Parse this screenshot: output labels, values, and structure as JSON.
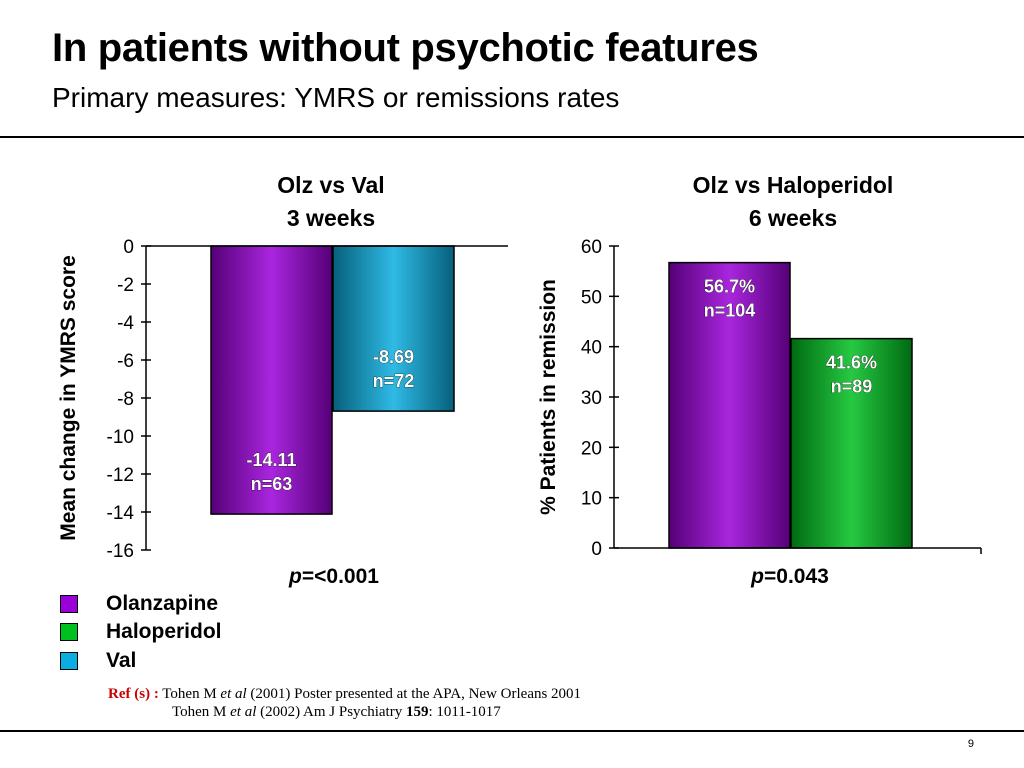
{
  "header": {
    "title": "In patients without psychotic features",
    "subtitle": "Primary measures: YMRS or remissions rates"
  },
  "colors": {
    "olanzapine": "#9a00d8",
    "haloperidol": "#00c020",
    "val": "#0aaee0",
    "reference_prefix": "#cc0000"
  },
  "chart_data": [
    {
      "type": "bar",
      "title_line1": "Olz vs Val",
      "title_line2": "3 weeks",
      "ylabel": "Mean change in YMRS score",
      "ylim": [
        -16,
        0
      ],
      "yticks": [
        "0",
        "-2",
        "-4",
        "-6",
        "-8",
        "-10",
        "-12",
        "-14",
        "-16"
      ],
      "series": [
        {
          "name": "Olanzapine",
          "value": -14.11,
          "label1": "-14.11",
          "label2": "n=63",
          "color": "#9a00d8"
        },
        {
          "name": "Val",
          "value": -8.69,
          "label1": "-8.69",
          "label2": "n=72",
          "color": "#0aaee0"
        }
      ],
      "p_italic": "p",
      "p_rest": "=<0.001"
    },
    {
      "type": "bar",
      "title_line1": "Olz vs Haloperidol",
      "title_line2": "6 weeks",
      "ylabel": "%  Patients in remission",
      "ylim": [
        0,
        60
      ],
      "yticks": [
        "60",
        "50",
        "40",
        "30",
        "20",
        "10",
        "0"
      ],
      "series": [
        {
          "name": "Olanzapine",
          "value": 56.7,
          "label1": "56.7%",
          "label2": "n=104",
          "color": "#9a00d8"
        },
        {
          "name": "Haloperidol",
          "value": 41.6,
          "label1": "41.6%",
          "label2": "n=89",
          "color": "#00c020"
        }
      ],
      "p_italic": "p",
      "p_rest": "=0.043"
    }
  ],
  "legend": [
    {
      "label": "Olanzapine",
      "color": "#9a00d8"
    },
    {
      "label": "Haloperidol",
      "color": "#00c020"
    },
    {
      "label": "Val",
      "color": "#0aaee0"
    }
  ],
  "references": {
    "prefix": "Ref (s) :",
    "ref1": {
      "authors": "Tohen M ",
      "etal": "et al",
      "rest": " (2001) Poster presented at the APA, New Orleans 2001"
    },
    "ref2": {
      "authors": "Tohen M ",
      "etal": "et al",
      "year_journal": " (2002) Am J Psychiatry ",
      "volume": "159",
      "pages": ": 1011-1017"
    }
  },
  "page_number": "9"
}
